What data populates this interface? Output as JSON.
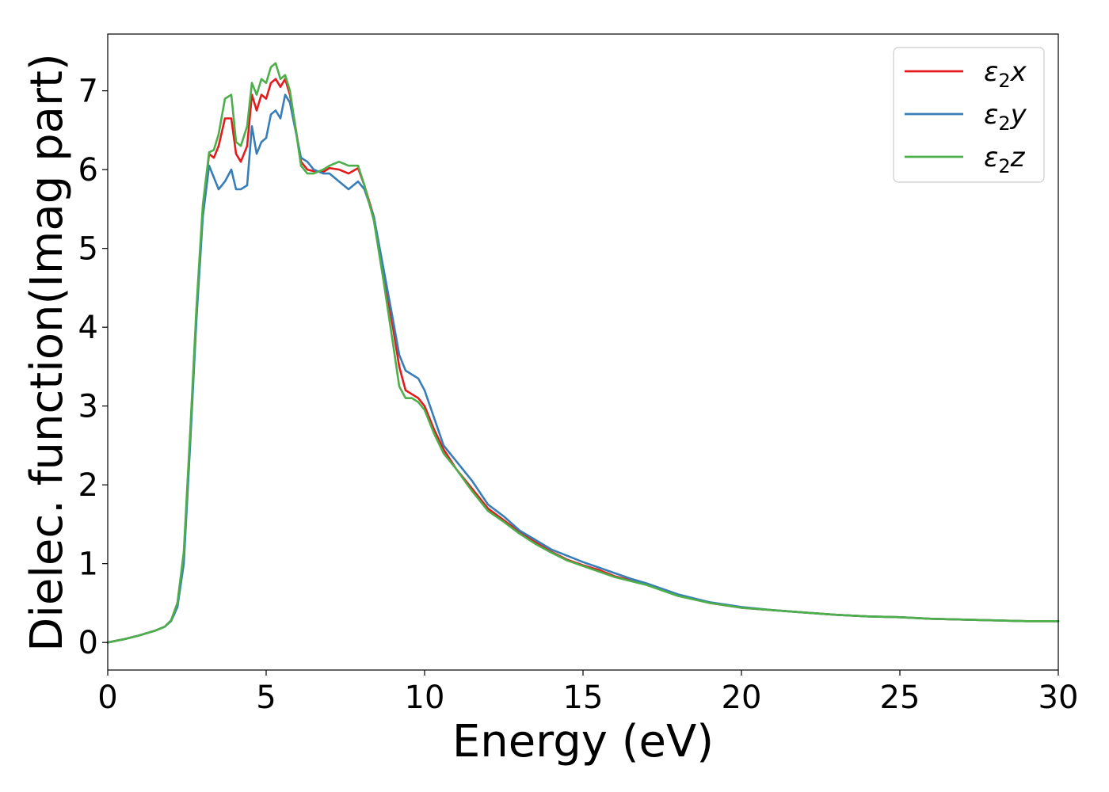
{
  "chart_data": {
    "type": "line",
    "xlabel": "Energy (eV)",
    "ylabel": "Dielec. function(Imag part)",
    "xlim": [
      0,
      30
    ],
    "ylim": [
      -0.35,
      7.72
    ],
    "xticks": [
      "0",
      "5",
      "10",
      "15",
      "20",
      "25",
      "30"
    ],
    "yticks": [
      "0",
      "1",
      "2",
      "3",
      "4",
      "5",
      "6",
      "7"
    ],
    "grid": false,
    "legend_position": "top-right",
    "series": [
      {
        "name": "ε2x",
        "symbol": "ε",
        "sub": "2",
        "axis": "x",
        "color": "#e41a1c",
        "x": [
          0,
          0.5,
          1,
          1.5,
          1.8,
          2.0,
          2.2,
          2.4,
          2.6,
          2.8,
          3.0,
          3.2,
          3.35,
          3.5,
          3.7,
          3.9,
          4.05,
          4.2,
          4.4,
          4.55,
          4.7,
          4.85,
          5.0,
          5.15,
          5.3,
          5.45,
          5.6,
          5.75,
          5.9,
          6.1,
          6.3,
          6.5,
          6.8,
          7.0,
          7.3,
          7.6,
          7.9,
          8.1,
          8.4,
          8.7,
          9.0,
          9.2,
          9.4,
          9.6,
          9.8,
          10.0,
          10.3,
          10.6,
          11.0,
          11.5,
          12.0,
          12.5,
          13.0,
          13.5,
          14.0,
          14.5,
          15.0,
          15.5,
          16.0,
          16.5,
          17.0,
          18.0,
          19.0,
          20.0,
          21.0,
          22.0,
          23.0,
          24.0,
          25.0,
          26.0,
          27.0,
          28.0,
          29.0,
          30.0
        ],
        "values": [
          0.0,
          0.04,
          0.09,
          0.15,
          0.2,
          0.28,
          0.5,
          1.1,
          2.6,
          4.2,
          5.5,
          6.2,
          6.15,
          6.3,
          6.65,
          6.65,
          6.2,
          6.1,
          6.3,
          6.95,
          6.75,
          6.95,
          6.9,
          7.1,
          7.15,
          7.05,
          7.15,
          6.95,
          6.6,
          6.1,
          6.0,
          5.98,
          5.97,
          6.02,
          6.0,
          5.95,
          6.02,
          5.8,
          5.4,
          4.7,
          4.0,
          3.5,
          3.2,
          3.15,
          3.1,
          3.0,
          2.7,
          2.45,
          2.2,
          1.95,
          1.7,
          1.55,
          1.4,
          1.27,
          1.15,
          1.05,
          0.98,
          0.92,
          0.84,
          0.79,
          0.74,
          0.6,
          0.5,
          0.44,
          0.41,
          0.38,
          0.35,
          0.33,
          0.32,
          0.3,
          0.29,
          0.28,
          0.27,
          0.27
        ]
      },
      {
        "name": "ε2y",
        "symbol": "ε",
        "sub": "2",
        "axis": "y",
        "color": "#377eb8",
        "x": [
          0,
          0.5,
          1,
          1.5,
          1.8,
          2.0,
          2.2,
          2.4,
          2.6,
          2.8,
          3.0,
          3.2,
          3.35,
          3.5,
          3.7,
          3.9,
          4.05,
          4.2,
          4.4,
          4.55,
          4.7,
          4.85,
          5.0,
          5.15,
          5.3,
          5.45,
          5.6,
          5.75,
          5.9,
          6.1,
          6.3,
          6.5,
          6.8,
          7.0,
          7.3,
          7.6,
          7.9,
          8.1,
          8.4,
          8.7,
          9.0,
          9.2,
          9.4,
          9.6,
          9.8,
          10.0,
          10.3,
          10.6,
          11.0,
          11.5,
          12.0,
          12.5,
          13.0,
          13.5,
          14.0,
          14.5,
          15.0,
          15.5,
          16.0,
          16.5,
          17.0,
          18.0,
          19.0,
          20.0,
          21.0,
          22.0,
          23.0,
          24.0,
          25.0,
          26.0,
          27.0,
          28.0,
          29.0,
          30.0
        ],
        "values": [
          0.0,
          0.04,
          0.09,
          0.15,
          0.2,
          0.27,
          0.45,
          1.0,
          2.5,
          4.1,
          5.4,
          6.05,
          5.9,
          5.75,
          5.85,
          6.0,
          5.75,
          5.75,
          5.8,
          6.55,
          6.2,
          6.35,
          6.4,
          6.7,
          6.75,
          6.65,
          6.95,
          6.85,
          6.55,
          6.15,
          6.1,
          6.0,
          5.95,
          5.95,
          5.85,
          5.75,
          5.85,
          5.75,
          5.4,
          4.75,
          4.1,
          3.65,
          3.45,
          3.4,
          3.35,
          3.2,
          2.85,
          2.5,
          2.3,
          2.05,
          1.75,
          1.6,
          1.42,
          1.3,
          1.18,
          1.1,
          1.02,
          0.95,
          0.88,
          0.81,
          0.75,
          0.61,
          0.51,
          0.45,
          0.41,
          0.38,
          0.35,
          0.33,
          0.32,
          0.3,
          0.29,
          0.28,
          0.27,
          0.27
        ]
      },
      {
        "name": "ε2z",
        "symbol": "ε",
        "sub": "2",
        "axis": "z",
        "color": "#4daf4a",
        "x": [
          0,
          0.5,
          1,
          1.5,
          1.8,
          2.0,
          2.2,
          2.4,
          2.6,
          2.8,
          3.0,
          3.2,
          3.35,
          3.5,
          3.7,
          3.9,
          4.05,
          4.2,
          4.4,
          4.55,
          4.7,
          4.85,
          5.0,
          5.15,
          5.3,
          5.45,
          5.6,
          5.75,
          5.9,
          6.1,
          6.3,
          6.5,
          6.8,
          7.0,
          7.3,
          7.6,
          7.9,
          8.1,
          8.4,
          8.7,
          9.0,
          9.2,
          9.4,
          9.6,
          9.8,
          10.0,
          10.3,
          10.6,
          11.0,
          11.5,
          12.0,
          12.5,
          13.0,
          13.5,
          14.0,
          14.5,
          15.0,
          15.5,
          16.0,
          16.5,
          17.0,
          18.0,
          19.0,
          20.0,
          21.0,
          22.0,
          23.0,
          24.0,
          25.0,
          26.0,
          27.0,
          28.0,
          29.0,
          30.0
        ],
        "values": [
          0.0,
          0.04,
          0.09,
          0.15,
          0.2,
          0.28,
          0.5,
          1.15,
          2.65,
          4.25,
          5.55,
          6.22,
          6.25,
          6.45,
          6.9,
          6.95,
          6.35,
          6.3,
          6.55,
          7.1,
          6.95,
          7.15,
          7.1,
          7.3,
          7.35,
          7.15,
          7.2,
          7.0,
          6.6,
          6.05,
          5.95,
          5.95,
          6.0,
          6.05,
          6.1,
          6.05,
          6.05,
          5.8,
          5.35,
          4.6,
          3.8,
          3.25,
          3.1,
          3.1,
          3.05,
          2.95,
          2.65,
          2.4,
          2.2,
          1.92,
          1.67,
          1.53,
          1.38,
          1.25,
          1.14,
          1.04,
          0.97,
          0.9,
          0.83,
          0.78,
          0.73,
          0.59,
          0.5,
          0.44,
          0.41,
          0.38,
          0.35,
          0.33,
          0.32,
          0.3,
          0.29,
          0.28,
          0.27,
          0.27
        ]
      }
    ]
  }
}
